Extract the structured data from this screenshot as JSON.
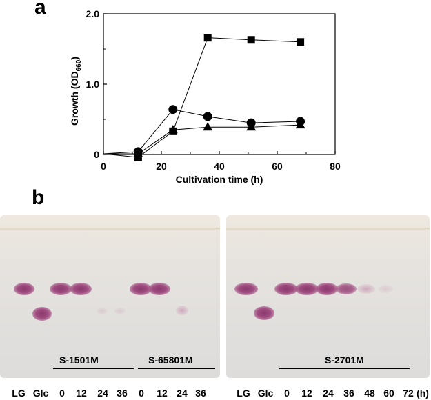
{
  "panel_a": {
    "letter": "a",
    "chart_data": {
      "type": "line",
      "xlabel": "Cultivation time (h)",
      "ylabel": "Growth (OD660)",
      "ylabel_main": "Growth (OD",
      "ylabel_sub": "660",
      "ylabel_end": ")",
      "xlim": [
        0,
        80
      ],
      "ylim": [
        0,
        2.0
      ],
      "xticks": [
        "0",
        "20",
        "40",
        "60",
        "80"
      ],
      "yticks": [
        "0",
        "1.0",
        "2.0"
      ],
      "grid": false,
      "series": [
        {
          "marker": "square",
          "x": [
            12,
            24,
            36,
            51,
            68
          ],
          "y": [
            -0.04,
            0.33,
            1.66,
            1.63,
            1.6
          ]
        },
        {
          "marker": "circle",
          "x": [
            12,
            24,
            36,
            51,
            68
          ],
          "y": [
            0.04,
            0.64,
            0.54,
            0.45,
            0.47
          ]
        },
        {
          "marker": "triangle",
          "x": [
            12,
            24,
            36,
            51,
            68
          ],
          "y": [
            0.01,
            0.35,
            0.39,
            0.39,
            0.42
          ]
        }
      ]
    }
  },
  "panel_b": {
    "letter": "b",
    "left_plate": {
      "strain_labels": [
        "S-1501M",
        "S-65801M"
      ]
    },
    "right_plate": {
      "strain_labels": [
        "S-2701M"
      ]
    },
    "lane_labels": {
      "left": [
        "LG",
        "Glc",
        "0",
        "12",
        "24",
        "36",
        "0",
        "12",
        "24",
        "36"
      ],
      "right": [
        "LG",
        "Glc",
        "0",
        "12",
        "24",
        "36",
        "48",
        "60",
        "72",
        "(h)"
      ]
    }
  }
}
